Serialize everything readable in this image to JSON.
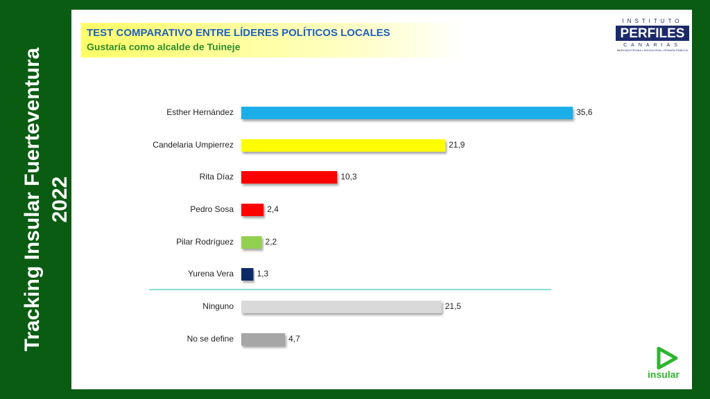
{
  "chart_data": {
    "type": "bar",
    "orientation": "horizontal",
    "title": "TEST COMPARATIVO ENTRE LÍDERES POLÍTICOS LOCALES",
    "subtitle": "Gustaría como alcalde de Tuineje",
    "side_title": [
      "Tracking Insular Fuerteventura",
      "2022"
    ],
    "categories": [
      "Esther Hernández",
      "Candelaria Umpierrez",
      "Rita Díaz",
      "Pedro Sosa",
      "Pilar Rodríguez",
      "Yurena Vera",
      "Ninguno",
      "No se define"
    ],
    "values": [
      35.6,
      21.9,
      10.3,
      2.4,
      2.2,
      1.3,
      21.5,
      4.7
    ],
    "value_labels": [
      "35,6",
      "21,9",
      "10,3",
      "2,4",
      "2,2",
      "1,3",
      "21,5",
      "4,7"
    ],
    "colors": [
      "#1aaee8",
      "#ffff00",
      "#ff0000",
      "#ff0000",
      "#92d050",
      "#0e2a66",
      "#d9d9d9",
      "#a6a6a6"
    ],
    "logos": {
      "perfiles": [
        "INSTITUTO",
        "PERFILES",
        "CANARIAS",
        "MERCADOTECNIA • SOCIOLOGÍA • OPINIÓN PÚBLICA"
      ],
      "insular": "insular"
    }
  }
}
